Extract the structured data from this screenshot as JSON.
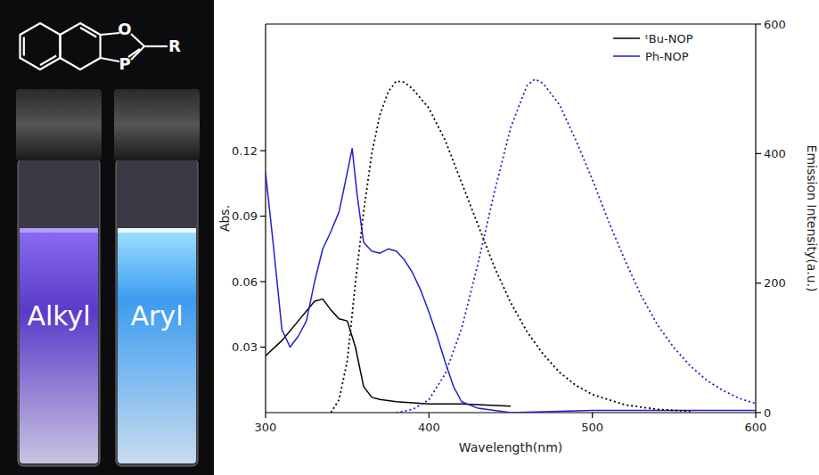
{
  "photo": {
    "structure_labels": [
      "O",
      "P",
      "R"
    ],
    "vials": [
      "Alkyl",
      "Aryl"
    ]
  },
  "chart_data": {
    "type": "line",
    "xlabel": "Wavelength(nm)",
    "ylabel": "Abs.",
    "y2label": "Emission Intensity(a.u.)",
    "xlim": [
      300,
      600
    ],
    "xticks": [
      300,
      400,
      500,
      600
    ],
    "ylim": [
      0,
      0.178
    ],
    "yticks": [
      0.03,
      0.06,
      0.09,
      0.12
    ],
    "y2lim": [
      0,
      600
    ],
    "y2ticks": [
      0,
      200,
      400,
      600
    ],
    "legend": "upper right",
    "grid": false,
    "series": [
      {
        "name": "ᵗBu-NOP",
        "color": "#000000",
        "line_style": "solid",
        "x": [
          300,
          310,
          320,
          330,
          335,
          340,
          345,
          350,
          355,
          360,
          365,
          370,
          380,
          400,
          420,
          450
        ],
        "values": [
          0.026,
          0.033,
          0.042,
          0.051,
          0.052,
          0.047,
          0.043,
          0.042,
          0.03,
          0.012,
          0.007,
          0.006,
          0.005,
          0.004,
          0.004,
          0.003
        ]
      },
      {
        "name": "Ph-NOP",
        "color": "#2020d0",
        "line_style": "solid",
        "x": [
          300,
          305,
          310,
          315,
          320,
          325,
          330,
          335,
          340,
          345,
          350,
          353,
          356,
          360,
          365,
          370,
          375,
          380,
          385,
          390,
          395,
          400,
          405,
          410,
          415,
          420,
          430,
          450,
          500,
          550,
          600
        ],
        "values": [
          0.11,
          0.075,
          0.038,
          0.03,
          0.035,
          0.042,
          0.06,
          0.075,
          0.083,
          0.092,
          0.11,
          0.121,
          0.1,
          0.078,
          0.074,
          0.073,
          0.075,
          0.074,
          0.07,
          0.064,
          0.056,
          0.046,
          0.035,
          0.023,
          0.012,
          0.005,
          0.002,
          0.0,
          0.001,
          0.001,
          0.001
        ]
      },
      {
        "name": "ᵗBu-NOP",
        "color": "#000000",
        "line_style": "dotted",
        "axis": "y2",
        "x": [
          340,
          345,
          350,
          355,
          360,
          365,
          370,
          375,
          380,
          385,
          390,
          400,
          410,
          420,
          430,
          440,
          450,
          460,
          470,
          480,
          490,
          500,
          520,
          540,
          560
        ],
        "values": [
          0,
          20,
          80,
          200,
          310,
          400,
          460,
          495,
          512,
          510,
          500,
          470,
          420,
          355,
          290,
          225,
          170,
          125,
          90,
          62,
          42,
          28,
          12,
          5,
          2
        ]
      },
      {
        "name": "Ph-NOP",
        "color": "#2020d0",
        "line_style": "dotted",
        "axis": "y2",
        "x": [
          380,
          390,
          400,
          410,
          420,
          430,
          440,
          450,
          460,
          465,
          470,
          480,
          490,
          500,
          510,
          520,
          530,
          540,
          550,
          560,
          570,
          580,
          590,
          600
        ],
        "values": [
          0,
          5,
          20,
          60,
          130,
          230,
          340,
          440,
          505,
          515,
          508,
          475,
          420,
          360,
          295,
          235,
          180,
          135,
          100,
          72,
          50,
          34,
          22,
          14
        ]
      }
    ]
  }
}
